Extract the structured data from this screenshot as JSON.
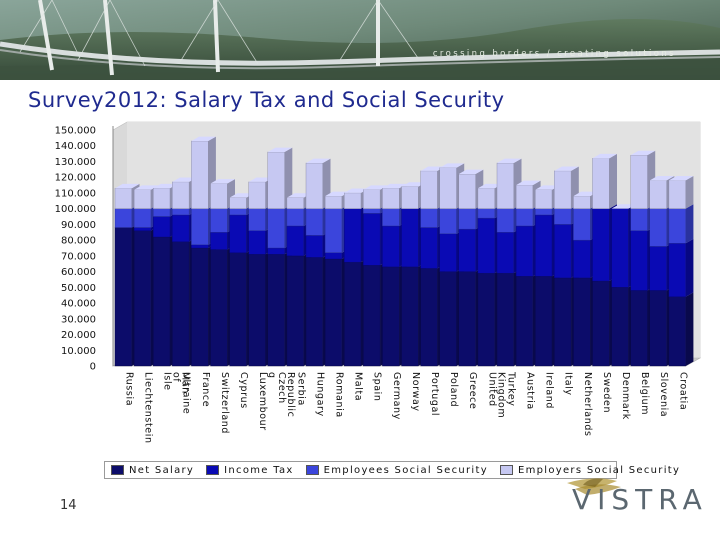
{
  "banner": {
    "tagline": "crossing borders / creating solutions"
  },
  "title": "Survey2012: Salary Tax and Social Security",
  "page_number": "14",
  "logo": {
    "text": "VISTRA"
  },
  "colors": {
    "net_salary": "#0c0c6a",
    "income_tax": "#0a0ab4",
    "employees_ss": "#3b45dc",
    "employers_ss": "#c6c8f2",
    "title": "#1f2a8f"
  },
  "chart_data": {
    "type": "bar",
    "stacked": true,
    "three_d": true,
    "y_ticks": [
      "0",
      "10.000",
      "20.000",
      "30.000",
      "40.000",
      "50.000",
      "60.000",
      "70.000",
      "80.000",
      "90.000",
      "100.000",
      "110.000",
      "120.000",
      "130.000",
      "140.000",
      "150.000"
    ],
    "ylim": [
      0,
      150000
    ],
    "legend_position": "bottom",
    "categories": [
      "Russia",
      "Liechtenstein",
      "Isle of Man",
      "Ultraine",
      "France",
      "Switzerland",
      "Cyprus",
      "Luxembour g",
      "Czech Republic",
      "Serbia",
      "Hungary",
      "Romania",
      "Malta",
      "Spain",
      "Germany",
      "Norway",
      "Portugal",
      "Poland",
      "Greece",
      "United Kingdom",
      "Turkey",
      "Austria",
      "Ireland",
      "Italy",
      "Netherlands",
      "Sweden",
      "Denmark",
      "Belgium",
      "Slovenia",
      "Croatia"
    ],
    "series": [
      {
        "name": "Net Salary",
        "values": [
          88000,
          86000,
          82000,
          79000,
          75000,
          74000,
          72000,
          71000,
          71000,
          70000,
          69000,
          68000,
          66000,
          64000,
          63000,
          63000,
          62000,
          60000,
          60000,
          59000,
          59000,
          57000,
          57000,
          56000,
          56000,
          54000,
          50000,
          48000,
          48000,
          44000
        ]
      },
      {
        "name": "Income Tax",
        "values": [
          0,
          2000,
          13000,
          17000,
          2000,
          11000,
          24000,
          15000,
          4000,
          19000,
          14000,
          4000,
          34000,
          33000,
          26000,
          37000,
          26000,
          24000,
          27000,
          35000,
          26000,
          32000,
          39000,
          34000,
          24000,
          46000,
          50000,
          38000,
          28000,
          34000
        ]
      },
      {
        "name": "Employees Social Security",
        "values": [
          12000,
          12000,
          5000,
          4000,
          23000,
          15000,
          4000,
          14000,
          25000,
          11000,
          17000,
          28000,
          0,
          3000,
          11000,
          0,
          12000,
          16000,
          13000,
          6000,
          15000,
          11000,
          4000,
          10000,
          20000,
          0,
          0,
          14000,
          24000,
          22000
        ]
      },
      {
        "name": "Employers Social Security",
        "values": [
          13000,
          12000,
          13000,
          17000,
          43000,
          16000,
          7000,
          17000,
          36000,
          7000,
          29000,
          8000,
          10000,
          12000,
          13000,
          14000,
          24000,
          26000,
          22000,
          13000,
          29000,
          15000,
          12000,
          24000,
          8000,
          32000,
          0,
          34000,
          18000,
          18000
        ]
      }
    ]
  }
}
